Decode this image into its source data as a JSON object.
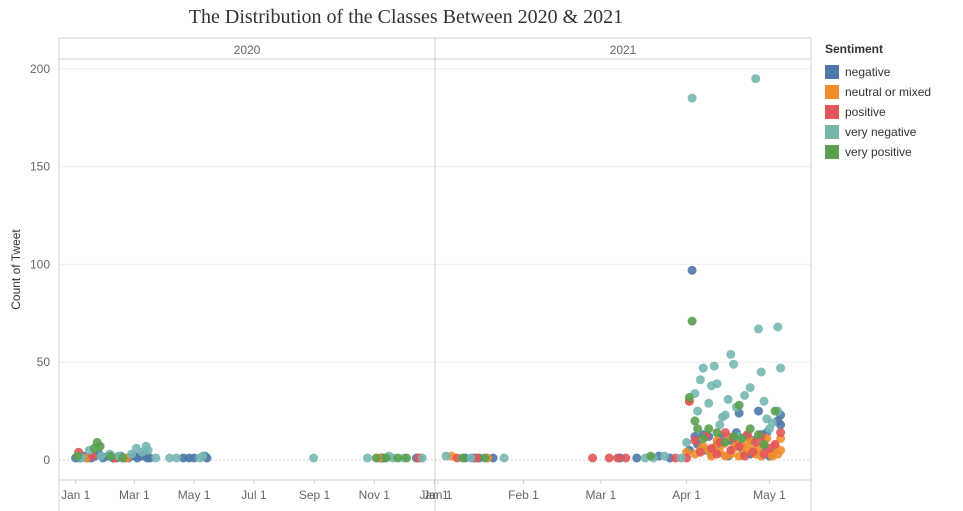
{
  "chart_data": {
    "type": "scatter",
    "title": "The Distribution of the Classes Between 2020 & 2021",
    "ylabel": "Count of Tweet",
    "xlabel": "",
    "ylim": [
      0,
      205
    ],
    "yticks": [
      0,
      50,
      100,
      150,
      200
    ],
    "grid": true,
    "legend_position": "right",
    "legend_title": "Sentiment",
    "colors": {
      "negative": "#4e79a7",
      "neutral or mixed": "#f28e2b",
      "positive": "#e15759",
      "very negative": "#76b7b2",
      "very positive": "#59a14f"
    },
    "panels": [
      {
        "name": "2020",
        "xrange": [
          "2019-12-15",
          "2021-01-02"
        ],
        "ticks": [
          {
            "date": "2020-01-01",
            "label": "Jan 1"
          },
          {
            "date": "2020-03-01",
            "label": "Mar 1"
          },
          {
            "date": "2020-05-01",
            "label": "May 1"
          },
          {
            "date": "2020-07-01",
            "label": "Jul 1"
          },
          {
            "date": "2020-09-01",
            "label": "Sep 1"
          },
          {
            "date": "2020-11-01",
            "label": "Nov 1"
          },
          {
            "date": "2021-01-01",
            "label": "Jan 1"
          }
        ]
      },
      {
        "name": "2021",
        "xrange": [
          "2020-12-31",
          "2021-05-16"
        ],
        "ticks": [
          {
            "date": "2021-01-01",
            "label": "Jan 1"
          },
          {
            "date": "2021-02-01",
            "label": "Feb 1"
          },
          {
            "date": "2021-03-01",
            "label": "Mar 1"
          },
          {
            "date": "2021-04-01",
            "label": "Apr 1"
          },
          {
            "date": "2021-05-01",
            "label": "May 1"
          }
        ]
      }
    ],
    "series": [
      {
        "name": "negative",
        "points": [
          [
            "2020-01-01",
            1
          ],
          [
            "2020-01-05",
            1
          ],
          [
            "2020-01-09",
            2
          ],
          [
            "2020-01-13",
            1
          ],
          [
            "2020-01-17",
            1
          ],
          [
            "2020-01-21",
            2
          ],
          [
            "2020-01-25",
            3
          ],
          [
            "2020-01-29",
            1
          ],
          [
            "2020-02-03",
            2
          ],
          [
            "2020-02-08",
            1
          ],
          [
            "2020-02-12",
            1
          ],
          [
            "2020-02-16",
            2
          ],
          [
            "2020-02-20",
            1
          ],
          [
            "2020-02-24",
            1
          ],
          [
            "2020-03-01",
            2
          ],
          [
            "2020-03-04",
            1
          ],
          [
            "2020-03-08",
            2
          ],
          [
            "2020-03-11",
            3
          ],
          [
            "2020-03-14",
            1
          ],
          [
            "2020-03-17",
            1
          ],
          [
            "2020-04-20",
            1
          ],
          [
            "2020-04-26",
            1
          ],
          [
            "2020-05-01",
            1
          ],
          [
            "2020-05-12",
            2
          ],
          [
            "2020-05-14",
            1
          ],
          [
            "2020-11-08",
            1
          ],
          [
            "2020-11-10",
            1
          ],
          [
            "2020-12-14",
            1
          ],
          [
            "2021-01-11",
            1
          ],
          [
            "2021-01-14",
            1
          ],
          [
            "2021-01-16",
            1
          ],
          [
            "2021-01-21",
            1
          ],
          [
            "2021-03-08",
            1
          ],
          [
            "2021-03-14",
            1
          ],
          [
            "2021-03-22",
            2
          ],
          [
            "2021-03-26",
            1
          ],
          [
            "2021-04-02",
            5
          ],
          [
            "2021-04-03",
            97
          ],
          [
            "2021-04-04",
            12
          ],
          [
            "2021-04-05",
            8
          ],
          [
            "2021-04-07",
            13
          ],
          [
            "2021-04-08",
            5
          ],
          [
            "2021-04-09",
            12
          ],
          [
            "2021-04-10",
            3
          ],
          [
            "2021-04-12",
            8
          ],
          [
            "2021-04-14",
            12
          ],
          [
            "2021-04-16",
            2
          ],
          [
            "2021-04-17",
            10
          ],
          [
            "2021-04-19",
            14
          ],
          [
            "2021-04-20",
            24
          ],
          [
            "2021-04-21",
            6
          ],
          [
            "2021-04-23",
            12
          ],
          [
            "2021-04-24",
            3
          ],
          [
            "2021-04-25",
            10
          ],
          [
            "2021-04-27",
            25
          ],
          [
            "2021-04-28",
            13
          ],
          [
            "2021-04-29",
            7
          ],
          [
            "2021-04-30",
            14
          ],
          [
            "2021-05-01",
            2
          ],
          [
            "2021-05-02",
            4
          ],
          [
            "2021-05-04",
            20
          ],
          [
            "2021-05-05",
            23
          ],
          [
            "2021-05-05",
            18
          ]
        ]
      },
      {
        "name": "neutral or mixed",
        "points": [
          [
            "2020-01-12",
            1
          ],
          [
            "2020-02-22",
            1
          ],
          [
            "2020-11-06",
            1
          ],
          [
            "2020-12-18",
            1
          ],
          [
            "2021-01-06",
            2
          ],
          [
            "2021-01-19",
            1
          ],
          [
            "2021-04-01",
            4
          ],
          [
            "2021-04-02",
            30
          ],
          [
            "2021-04-04",
            3
          ],
          [
            "2021-04-06",
            5
          ],
          [
            "2021-04-07",
            7
          ],
          [
            "2021-04-09",
            5
          ],
          [
            "2021-04-10",
            2
          ],
          [
            "2021-04-11",
            6
          ],
          [
            "2021-04-12",
            10
          ],
          [
            "2021-04-13",
            4
          ],
          [
            "2021-04-14",
            8
          ],
          [
            "2021-04-15",
            2
          ],
          [
            "2021-04-16",
            12
          ],
          [
            "2021-04-17",
            3
          ],
          [
            "2021-04-18",
            6
          ],
          [
            "2021-04-19",
            9
          ],
          [
            "2021-04-20",
            2
          ],
          [
            "2021-04-21",
            8
          ],
          [
            "2021-04-22",
            4
          ],
          [
            "2021-04-23",
            7
          ],
          [
            "2021-04-24",
            10
          ],
          [
            "2021-04-25",
            5
          ],
          [
            "2021-04-26",
            3
          ],
          [
            "2021-04-27",
            6
          ],
          [
            "2021-04-28",
            2
          ],
          [
            "2021-04-29",
            9
          ],
          [
            "2021-04-30",
            11
          ],
          [
            "2021-05-01",
            4
          ],
          [
            "2021-05-02",
            2
          ],
          [
            "2021-05-03",
            7
          ],
          [
            "2021-05-04",
            3
          ],
          [
            "2021-05-05",
            11
          ],
          [
            "2021-05-05",
            5
          ]
        ]
      },
      {
        "name": "positive",
        "points": [
          [
            "2020-01-04",
            4
          ],
          [
            "2020-01-18",
            2
          ],
          [
            "2020-02-10",
            1
          ],
          [
            "2020-12-16",
            1
          ],
          [
            "2021-01-08",
            1
          ],
          [
            "2021-01-15",
            1
          ],
          [
            "2021-02-26",
            1
          ],
          [
            "2021-03-04",
            1
          ],
          [
            "2021-03-07",
            1
          ],
          [
            "2021-03-10",
            1
          ],
          [
            "2021-03-28",
            1
          ],
          [
            "2021-04-01",
            1
          ],
          [
            "2021-04-02",
            30
          ],
          [
            "2021-04-04",
            10
          ],
          [
            "2021-04-06",
            4
          ],
          [
            "2021-04-08",
            12
          ],
          [
            "2021-04-10",
            6
          ],
          [
            "2021-04-12",
            3
          ],
          [
            "2021-04-13",
            9
          ],
          [
            "2021-04-15",
            14
          ],
          [
            "2021-04-17",
            5
          ],
          [
            "2021-04-18",
            11
          ],
          [
            "2021-04-20",
            7
          ],
          [
            "2021-04-22",
            2
          ],
          [
            "2021-04-23",
            13
          ],
          [
            "2021-04-25",
            4
          ],
          [
            "2021-04-26",
            9
          ],
          [
            "2021-04-28",
            12
          ],
          [
            "2021-04-29",
            3
          ],
          [
            "2021-05-01",
            6
          ],
          [
            "2021-05-03",
            8
          ],
          [
            "2021-05-05",
            14
          ]
        ]
      },
      {
        "name": "very negative",
        "points": [
          [
            "2020-01-07",
            1
          ],
          [
            "2020-01-15",
            5
          ],
          [
            "2020-01-27",
            2
          ],
          [
            "2020-02-05",
            3
          ],
          [
            "2020-02-14",
            2
          ],
          [
            "2020-02-27",
            3
          ],
          [
            "2020-03-03",
            6
          ],
          [
            "2020-03-09",
            4
          ],
          [
            "2020-03-13",
            7
          ],
          [
            "2020-03-15",
            5
          ],
          [
            "2020-03-23",
            1
          ],
          [
            "2020-04-06",
            1
          ],
          [
            "2020-04-13",
            1
          ],
          [
            "2020-05-07",
            1
          ],
          [
            "2020-05-10",
            2
          ],
          [
            "2020-08-31",
            1
          ],
          [
            "2020-10-25",
            1
          ],
          [
            "2020-11-16",
            2
          ],
          [
            "2020-11-20",
            1
          ],
          [
            "2020-12-01",
            1
          ],
          [
            "2020-12-20",
            1
          ],
          [
            "2021-01-04",
            2
          ],
          [
            "2021-01-13",
            1
          ],
          [
            "2021-01-25",
            1
          ],
          [
            "2021-03-17",
            1
          ],
          [
            "2021-03-20",
            1
          ],
          [
            "2021-03-24",
            2
          ],
          [
            "2021-03-30",
            1
          ],
          [
            "2021-04-01",
            9
          ],
          [
            "2021-04-03",
            185
          ],
          [
            "2021-04-04",
            34
          ],
          [
            "2021-04-05",
            25
          ],
          [
            "2021-04-06",
            41
          ],
          [
            "2021-04-07",
            47
          ],
          [
            "2021-04-09",
            29
          ],
          [
            "2021-04-10",
            38
          ],
          [
            "2021-04-11",
            48
          ],
          [
            "2021-04-12",
            39
          ],
          [
            "2021-04-13",
            18
          ],
          [
            "2021-04-14",
            22
          ],
          [
            "2021-04-15",
            23
          ],
          [
            "2021-04-16",
            31
          ],
          [
            "2021-04-17",
            54
          ],
          [
            "2021-04-18",
            49
          ],
          [
            "2021-04-19",
            27
          ],
          [
            "2021-04-20",
            12
          ],
          [
            "2021-04-22",
            33
          ],
          [
            "2021-04-24",
            37
          ],
          [
            "2021-04-26",
            195
          ],
          [
            "2021-04-27",
            67
          ],
          [
            "2021-04-28",
            45
          ],
          [
            "2021-04-29",
            30
          ],
          [
            "2021-04-30",
            21
          ],
          [
            "2021-05-01",
            16
          ],
          [
            "2021-05-02",
            19
          ],
          [
            "2021-05-04",
            68
          ],
          [
            "2021-05-04",
            25
          ],
          [
            "2021-05-05",
            47
          ]
        ]
      },
      {
        "name": "very positive",
        "points": [
          [
            "2020-01-03",
            2
          ],
          [
            "2020-01-20",
            6
          ],
          [
            "2020-01-23",
            9
          ],
          [
            "2020-01-26",
            7
          ],
          [
            "2020-02-06",
            2
          ],
          [
            "2020-02-18",
            1
          ],
          [
            "2020-11-03",
            1
          ],
          [
            "2020-11-13",
            1
          ],
          [
            "2020-11-25",
            1
          ],
          [
            "2020-12-04",
            1
          ],
          [
            "2021-01-10",
            1
          ],
          [
            "2021-01-18",
            1
          ],
          [
            "2021-03-19",
            2
          ],
          [
            "2021-04-02",
            32
          ],
          [
            "2021-04-03",
            71
          ],
          [
            "2021-04-04",
            20
          ],
          [
            "2021-04-05",
            16
          ],
          [
            "2021-04-07",
            11
          ],
          [
            "2021-04-09",
            16
          ],
          [
            "2021-04-12",
            14
          ],
          [
            "2021-04-15",
            9
          ],
          [
            "2021-04-18",
            12
          ],
          [
            "2021-04-20",
            28
          ],
          [
            "2021-04-21",
            11
          ],
          [
            "2021-04-24",
            16
          ],
          [
            "2021-04-27",
            13
          ],
          [
            "2021-04-29",
            8
          ],
          [
            "2021-05-03",
            25
          ]
        ]
      }
    ]
  }
}
